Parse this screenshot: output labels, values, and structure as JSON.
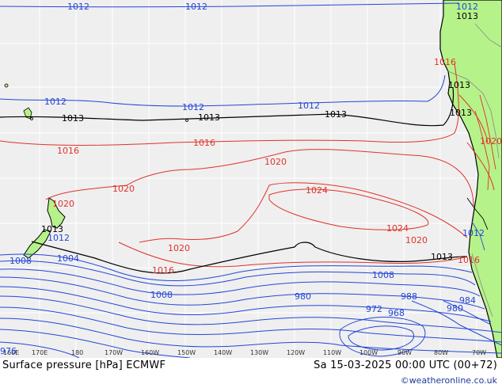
{
  "colors": {
    "ocean": "#efefef",
    "land": "#b6f28a",
    "grid": "#ffffff",
    "coast": "#000000",
    "isobar_low": "#2346d8",
    "isobar_std": "#000000",
    "isobar_high": "#e0322a",
    "credit": "#1a3a9a"
  },
  "caption": {
    "left": "Surface pressure [hPa] ECMWF",
    "right": "Sa 15-03-2025 00:00 UTC (00+72)",
    "credit": "©weatheronline.co.uk"
  },
  "longitude_ticks": [
    "160E",
    "170E",
    "180",
    "170W",
    "160W",
    "150W",
    "140W",
    "130W",
    "120W",
    "110W",
    "100W",
    "90W",
    "80W",
    "70W"
  ],
  "isobar_labels": [
    {
      "text": "1012",
      "kind": "low"
    },
    {
      "text": "1012",
      "kind": "low"
    },
    {
      "text": "1012",
      "kind": "low"
    },
    {
      "text": "1012",
      "kind": "low"
    },
    {
      "text": "1012",
      "kind": "low"
    },
    {
      "text": "1012",
      "kind": "low"
    },
    {
      "text": "1013",
      "kind": "std"
    },
    {
      "text": "1013",
      "kind": "std"
    },
    {
      "text": "1013",
      "kind": "std"
    },
    {
      "text": "1013",
      "kind": "std"
    },
    {
      "text": "1013",
      "kind": "std"
    },
    {
      "text": "1013",
      "kind": "std"
    },
    {
      "text": "1013",
      "kind": "std"
    },
    {
      "text": "1016",
      "kind": "high"
    },
    {
      "text": "1016",
      "kind": "high"
    },
    {
      "text": "1016",
      "kind": "high"
    },
    {
      "text": "1020",
      "kind": "high"
    },
    {
      "text": "1020",
      "kind": "high"
    },
    {
      "text": "1020",
      "kind": "high"
    },
    {
      "text": "1020",
      "kind": "high"
    },
    {
      "text": "1020",
      "kind": "high"
    },
    {
      "text": "1024",
      "kind": "high"
    },
    {
      "text": "1024",
      "kind": "high"
    },
    {
      "text": "1016",
      "kind": "high"
    },
    {
      "text": "1012",
      "kind": "low"
    },
    {
      "text": "1008",
      "kind": "low"
    },
    {
      "text": "1004",
      "kind": "low"
    },
    {
      "text": "1008",
      "kind": "low"
    },
    {
      "text": "1008",
      "kind": "low"
    },
    {
      "text": "980",
      "kind": "low"
    },
    {
      "text": "988",
      "kind": "low"
    },
    {
      "text": "972",
      "kind": "low"
    },
    {
      "text": "968",
      "kind": "low"
    },
    {
      "text": "980",
      "kind": "low"
    },
    {
      "text": "984",
      "kind": "low"
    },
    {
      "text": "976",
      "kind": "low"
    },
    {
      "text": "1012",
      "kind": "low"
    },
    {
      "text": "1013",
      "kind": "std"
    },
    {
      "text": "1016",
      "kind": "high"
    },
    {
      "text": "1020",
      "kind": "high"
    }
  ]
}
